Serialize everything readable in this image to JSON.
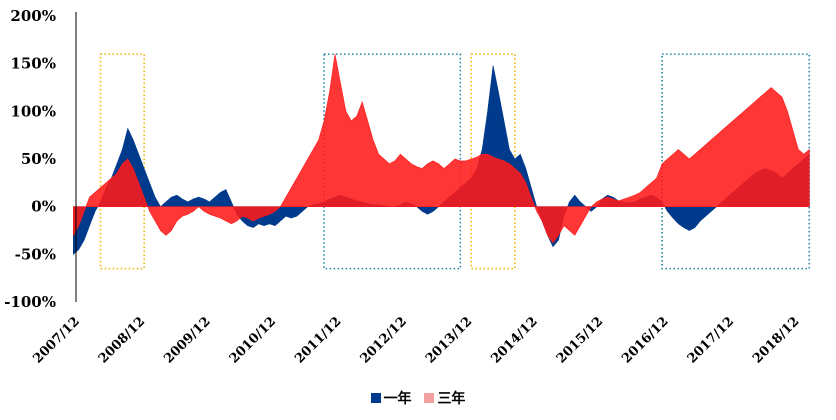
{
  "chart_data": {
    "type": "area",
    "title": "",
    "xlabel": "",
    "ylabel": "",
    "ylim": [
      -100,
      200
    ],
    "y_ticks": [
      "-100%",
      "-50%",
      "0%",
      "50%",
      "100%",
      "150%",
      "200%"
    ],
    "x_ticks": [
      "2007/12",
      "2008/12",
      "2009/12",
      "2010/12",
      "2011/12",
      "2012/12",
      "2013/12",
      "2014/12",
      "2015/12",
      "2016/12",
      "2017/12",
      "2018/12"
    ],
    "grid": false,
    "legend": "bottom-center",
    "colors": {
      "one_year": "#003a8c",
      "three_year": "#ff1a1a",
      "three_year_swatch": "#f4a0a0",
      "highlight_gold": "#f0b400",
      "highlight_teal": "#1f7fa8"
    },
    "series": [
      {
        "name": "一年",
        "points": [
          [
            "2007-12",
            -50
          ],
          [
            "2008-01",
            -45
          ],
          [
            "2008-02",
            -35
          ],
          [
            "2008-03",
            -20
          ],
          [
            "2008-04",
            -5
          ],
          [
            "2008-05",
            5
          ],
          [
            "2008-06",
            20
          ],
          [
            "2008-07",
            30
          ],
          [
            "2008-08",
            45
          ],
          [
            "2008-09",
            60
          ],
          [
            "2008-10",
            82
          ],
          [
            "2008-11",
            70
          ],
          [
            "2008-12",
            55
          ],
          [
            "2009-01",
            40
          ],
          [
            "2009-02",
            25
          ],
          [
            "2009-03",
            10
          ],
          [
            "2009-04",
            0
          ],
          [
            "2009-05",
            5
          ],
          [
            "2009-06",
            10
          ],
          [
            "2009-07",
            12
          ],
          [
            "2009-08",
            8
          ],
          [
            "2009-09",
            5
          ],
          [
            "2009-10",
            8
          ],
          [
            "2009-11",
            10
          ],
          [
            "2009-12",
            8
          ],
          [
            "2010-01",
            5
          ],
          [
            "2010-02",
            10
          ],
          [
            "2010-03",
            15
          ],
          [
            "2010-04",
            18
          ],
          [
            "2010-05",
            5
          ],
          [
            "2010-06",
            -8
          ],
          [
            "2010-07",
            -15
          ],
          [
            "2010-08",
            -20
          ],
          [
            "2010-09",
            -22
          ],
          [
            "2010-10",
            -18
          ],
          [
            "2010-11",
            -20
          ],
          [
            "2010-12",
            -18
          ],
          [
            "2011-01",
            -20
          ],
          [
            "2011-02",
            -15
          ],
          [
            "2011-03",
            -10
          ],
          [
            "2011-04",
            -12
          ],
          [
            "2011-05",
            -10
          ],
          [
            "2011-06",
            -5
          ],
          [
            "2011-07",
            0
          ],
          [
            "2011-08",
            2
          ],
          [
            "2011-09",
            3
          ],
          [
            "2011-10",
            5
          ],
          [
            "2011-11",
            8
          ],
          [
            "2011-12",
            10
          ],
          [
            "2012-01",
            12
          ],
          [
            "2012-02",
            10
          ],
          [
            "2012-03",
            8
          ],
          [
            "2012-04",
            6
          ],
          [
            "2012-05",
            5
          ],
          [
            "2012-06",
            3
          ],
          [
            "2012-07",
            2
          ],
          [
            "2012-08",
            2
          ],
          [
            "2012-09",
            1
          ],
          [
            "2012-10",
            0
          ],
          [
            "2012-11",
            0
          ],
          [
            "2012-12",
            2
          ],
          [
            "2013-01",
            5
          ],
          [
            "2013-02",
            3
          ],
          [
            "2013-03",
            0
          ],
          [
            "2013-04",
            -5
          ],
          [
            "2013-05",
            -8
          ],
          [
            "2013-06",
            -5
          ],
          [
            "2013-07",
            0
          ],
          [
            "2013-08",
            5
          ],
          [
            "2013-09",
            10
          ],
          [
            "2013-10",
            15
          ],
          [
            "2013-11",
            20
          ],
          [
            "2013-12",
            25
          ],
          [
            "2014-01",
            30
          ],
          [
            "2014-02",
            40
          ],
          [
            "2014-03",
            60
          ],
          [
            "2014-04",
            100
          ],
          [
            "2014-05",
            148
          ],
          [
            "2014-06",
            120
          ],
          [
            "2014-07",
            90
          ],
          [
            "2014-08",
            60
          ],
          [
            "2014-09",
            50
          ],
          [
            "2014-10",
            55
          ],
          [
            "2014-11",
            40
          ],
          [
            "2014-12",
            20
          ],
          [
            "2015-01",
            0
          ],
          [
            "2015-02",
            -15
          ],
          [
            "2015-03",
            -30
          ],
          [
            "2015-04",
            -42
          ],
          [
            "2015-05",
            -35
          ],
          [
            "2015-06",
            -10
          ],
          [
            "2015-07",
            5
          ],
          [
            "2015-08",
            12
          ],
          [
            "2015-09",
            5
          ],
          [
            "2015-10",
            0
          ],
          [
            "2015-11",
            -5
          ],
          [
            "2015-12",
            0
          ],
          [
            "2016-01",
            8
          ],
          [
            "2016-02",
            12
          ],
          [
            "2016-03",
            10
          ],
          [
            "2016-04",
            6
          ],
          [
            "2016-05",
            5
          ],
          [
            "2016-06",
            4
          ],
          [
            "2016-07",
            5
          ],
          [
            "2016-08",
            8
          ],
          [
            "2016-09",
            10
          ],
          [
            "2016-10",
            12
          ],
          [
            "2016-11",
            10
          ],
          [
            "2016-12",
            5
          ],
          [
            "2017-01",
            -5
          ],
          [
            "2017-02",
            -12
          ],
          [
            "2017-03",
            -18
          ],
          [
            "2017-04",
            -22
          ],
          [
            "2017-05",
            -25
          ],
          [
            "2017-06",
            -22
          ],
          [
            "2017-07",
            -15
          ],
          [
            "2017-08",
            -10
          ],
          [
            "2017-09",
            -5
          ],
          [
            "2017-10",
            0
          ],
          [
            "2017-11",
            5
          ],
          [
            "2017-12",
            10
          ],
          [
            "2018-01",
            15
          ],
          [
            "2018-02",
            20
          ],
          [
            "2018-03",
            25
          ],
          [
            "2018-04",
            30
          ],
          [
            "2018-05",
            35
          ],
          [
            "2018-06",
            38
          ],
          [
            "2018-07",
            40
          ],
          [
            "2018-08",
            38
          ],
          [
            "2018-09",
            35
          ],
          [
            "2018-10",
            30
          ],
          [
            "2018-11",
            35
          ],
          [
            "2018-12",
            40
          ],
          [
            "2019-01",
            45
          ],
          [
            "2019-02",
            50
          ],
          [
            "2019-03",
            55
          ]
        ]
      },
      {
        "name": "三年",
        "points": [
          [
            "2007-12",
            -30
          ],
          [
            "2008-01",
            -20
          ],
          [
            "2008-02",
            -5
          ],
          [
            "2008-03",
            10
          ],
          [
            "2008-04",
            15
          ],
          [
            "2008-05",
            20
          ],
          [
            "2008-06",
            25
          ],
          [
            "2008-07",
            30
          ],
          [
            "2008-08",
            35
          ],
          [
            "2008-09",
            45
          ],
          [
            "2008-10",
            50
          ],
          [
            "2008-11",
            40
          ],
          [
            "2008-12",
            25
          ],
          [
            "2009-01",
            10
          ],
          [
            "2009-02",
            -5
          ],
          [
            "2009-03",
            -15
          ],
          [
            "2009-04",
            -25
          ],
          [
            "2009-05",
            -30
          ],
          [
            "2009-06",
            -25
          ],
          [
            "2009-07",
            -15
          ],
          [
            "2009-08",
            -10
          ],
          [
            "2009-09",
            -8
          ],
          [
            "2009-10",
            -5
          ],
          [
            "2009-11",
            0
          ],
          [
            "2009-12",
            -5
          ],
          [
            "2010-01",
            -8
          ],
          [
            "2010-02",
            -10
          ],
          [
            "2010-03",
            -12
          ],
          [
            "2010-04",
            -15
          ],
          [
            "2010-05",
            -18
          ],
          [
            "2010-06",
            -15
          ],
          [
            "2010-07",
            -10
          ],
          [
            "2010-08",
            -12
          ],
          [
            "2010-09",
            -15
          ],
          [
            "2010-10",
            -12
          ],
          [
            "2010-11",
            -10
          ],
          [
            "2010-12",
            -8
          ],
          [
            "2011-01",
            -5
          ],
          [
            "2011-02",
            0
          ],
          [
            "2011-03",
            10
          ],
          [
            "2011-04",
            20
          ],
          [
            "2011-05",
            30
          ],
          [
            "2011-06",
            40
          ],
          [
            "2011-07",
            50
          ],
          [
            "2011-08",
            60
          ],
          [
            "2011-09",
            70
          ],
          [
            "2011-10",
            90
          ],
          [
            "2011-11",
            120
          ],
          [
            "2011-12",
            160
          ],
          [
            "2012-01",
            130
          ],
          [
            "2012-02",
            100
          ],
          [
            "2012-03",
            90
          ],
          [
            "2012-04",
            95
          ],
          [
            "2012-05",
            110
          ],
          [
            "2012-06",
            90
          ],
          [
            "2012-07",
            70
          ],
          [
            "2012-08",
            55
          ],
          [
            "2012-09",
            50
          ],
          [
            "2012-10",
            45
          ],
          [
            "2012-11",
            48
          ],
          [
            "2012-12",
            55
          ],
          [
            "2013-01",
            50
          ],
          [
            "2013-02",
            45
          ],
          [
            "2013-03",
            42
          ],
          [
            "2013-04",
            40
          ],
          [
            "2013-05",
            45
          ],
          [
            "2013-06",
            48
          ],
          [
            "2013-07",
            45
          ],
          [
            "2013-08",
            40
          ],
          [
            "2013-09",
            45
          ],
          [
            "2013-10",
            50
          ],
          [
            "2013-11",
            48
          ],
          [
            "2013-12",
            48
          ],
          [
            "2014-01",
            50
          ],
          [
            "2014-02",
            52
          ],
          [
            "2014-03",
            55
          ],
          [
            "2014-04",
            55
          ],
          [
            "2014-05",
            52
          ],
          [
            "2014-06",
            50
          ],
          [
            "2014-07",
            48
          ],
          [
            "2014-08",
            45
          ],
          [
            "2014-09",
            40
          ],
          [
            "2014-10",
            35
          ],
          [
            "2014-11",
            25
          ],
          [
            "2014-12",
            10
          ],
          [
            "2015-01",
            -5
          ],
          [
            "2015-02",
            -15
          ],
          [
            "2015-03",
            -30
          ],
          [
            "2015-04",
            -38
          ],
          [
            "2015-05",
            -30
          ],
          [
            "2015-06",
            -20
          ],
          [
            "2015-07",
            -25
          ],
          [
            "2015-08",
            -30
          ],
          [
            "2015-09",
            -20
          ],
          [
            "2015-10",
            -10
          ],
          [
            "2015-11",
            0
          ],
          [
            "2015-12",
            5
          ],
          [
            "2016-01",
            8
          ],
          [
            "2016-02",
            10
          ],
          [
            "2016-03",
            8
          ],
          [
            "2016-04",
            6
          ],
          [
            "2016-05",
            8
          ],
          [
            "2016-06",
            10
          ],
          [
            "2016-07",
            12
          ],
          [
            "2016-08",
            15
          ],
          [
            "2016-09",
            20
          ],
          [
            "2016-10",
            25
          ],
          [
            "2016-11",
            30
          ],
          [
            "2016-12",
            45
          ],
          [
            "2017-01",
            50
          ],
          [
            "2017-02",
            55
          ],
          [
            "2017-03",
            60
          ],
          [
            "2017-04",
            55
          ],
          [
            "2017-05",
            50
          ],
          [
            "2017-06",
            55
          ],
          [
            "2017-07",
            60
          ],
          [
            "2017-08",
            65
          ],
          [
            "2017-09",
            70
          ],
          [
            "2017-10",
            75
          ],
          [
            "2017-11",
            80
          ],
          [
            "2017-12",
            85
          ],
          [
            "2018-01",
            90
          ],
          [
            "2018-02",
            95
          ],
          [
            "2018-03",
            100
          ],
          [
            "2018-04",
            105
          ],
          [
            "2018-05",
            110
          ],
          [
            "2018-06",
            115
          ],
          [
            "2018-07",
            120
          ],
          [
            "2018-08",
            125
          ],
          [
            "2018-09",
            120
          ],
          [
            "2018-10",
            115
          ],
          [
            "2018-11",
            100
          ],
          [
            "2018-12",
            80
          ],
          [
            "2019-01",
            60
          ],
          [
            "2019-02",
            55
          ],
          [
            "2019-03",
            60
          ]
        ]
      }
    ],
    "highlight_boxes": [
      {
        "style": "gold",
        "from": "2008-05",
        "to": "2009-01",
        "ymin": -65,
        "ymax": 160
      },
      {
        "style": "teal",
        "from": "2011-10",
        "to": "2013-11",
        "ymin": -65,
        "ymax": 160
      },
      {
        "style": "gold",
        "from": "2014-01",
        "to": "2014-09",
        "ymin": -65,
        "ymax": 160
      },
      {
        "style": "teal",
        "from": "2016-12",
        "to": "2019-03",
        "ymin": -65,
        "ymax": 160
      }
    ]
  },
  "legend": {
    "one_year_label": "一年",
    "three_year_label": "三年"
  }
}
